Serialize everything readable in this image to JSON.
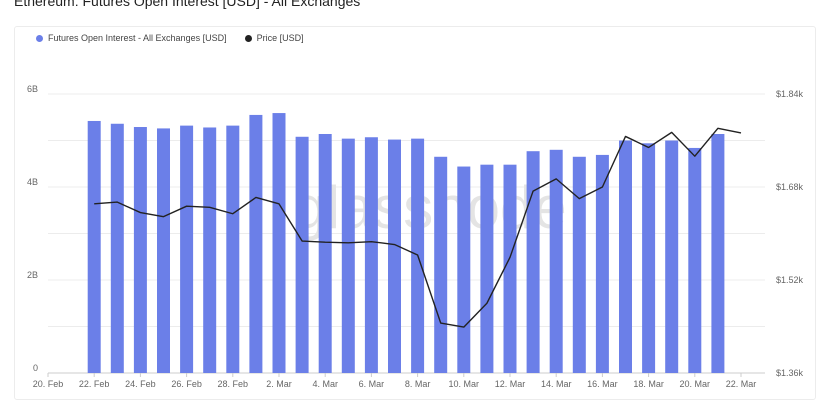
{
  "title": "Ethereum: Futures Open Interest [USD] - All Exchanges",
  "watermark": "glassnode",
  "chart_data": {
    "type": "bar",
    "legend_position": "top-left",
    "grid": true,
    "series": [
      {
        "name": "Futures Open Interest - All Exchanges [USD]",
        "kind": "bar",
        "color": "#6b7fe8",
        "axis": "left",
        "values": [
          5.42,
          5.36,
          5.29,
          5.26,
          5.32,
          5.28,
          5.32,
          5.55,
          5.59,
          5.08,
          5.14,
          5.04,
          5.07,
          5.02,
          5.04,
          4.65,
          4.44,
          4.48,
          4.48,
          4.77,
          4.8,
          4.65,
          4.69,
          5.0,
          4.94,
          5.0,
          4.84,
          5.14
        ]
      },
      {
        "name": "Price [USD]",
        "kind": "line",
        "color": "#222222",
        "axis": "right",
        "values": [
          1.651,
          1.654,
          1.636,
          1.629,
          1.647,
          1.645,
          1.634,
          1.662,
          1.651,
          1.587,
          1.585,
          1.584,
          1.586,
          1.581,
          1.563,
          1.446,
          1.439,
          1.48,
          1.559,
          1.673,
          1.694,
          1.66,
          1.68,
          1.767,
          1.748,
          1.774,
          1.733,
          1.781,
          1.773
        ]
      }
    ],
    "x_ticks": [
      "20. Feb",
      "22. Feb",
      "24. Feb",
      "26. Feb",
      "28. Feb",
      "2. Mar",
      "4. Mar",
      "6. Mar",
      "8. Mar",
      "10. Mar",
      "12. Mar",
      "14. Mar",
      "16. Mar",
      "18. Mar",
      "20. Mar",
      "22. Mar"
    ],
    "y_left_ticks": [
      "0",
      "2B",
      "4B",
      "6B"
    ],
    "y_left_range": [
      0,
      6
    ],
    "y_right_ticks": [
      "$1.36k",
      "$1.52k",
      "$1.68k",
      "$1.84k"
    ],
    "y_right_range": [
      1.36,
      1.84
    ]
  }
}
